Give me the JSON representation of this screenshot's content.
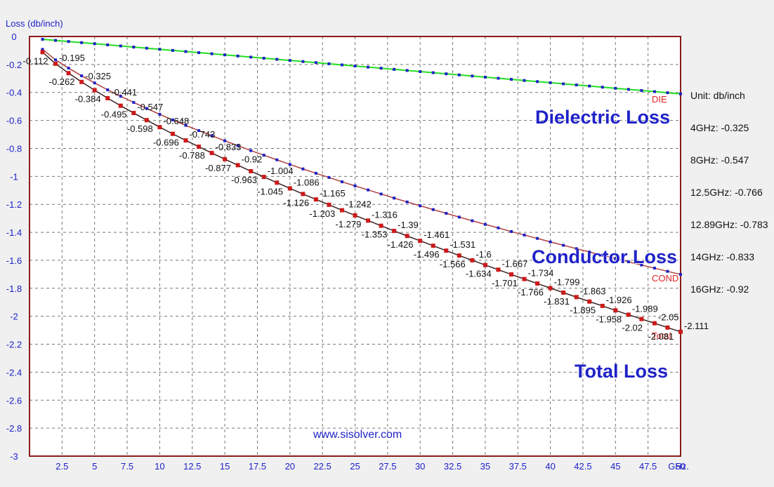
{
  "chart_data": {
    "type": "line",
    "ylabel": "Loss (db/inch)",
    "xunit": "GHz.",
    "xlim": [
      0,
      50
    ],
    "ylim": [
      -3,
      0
    ],
    "xticks": [
      2.5,
      5,
      7.5,
      10,
      12.5,
      15,
      17.5,
      20,
      22.5,
      25,
      27.5,
      30,
      32.5,
      35,
      37.5,
      40,
      42.5,
      45,
      47.5,
      50
    ],
    "yticks": [
      0,
      -0.2,
      -0.4,
      -0.6,
      -0.8,
      -1,
      -1.2,
      -1.4,
      -1.6,
      -1.8,
      -2,
      -2.2,
      -2.4,
      -2.6,
      -2.8,
      -3
    ],
    "grid": true,
    "series": [
      {
        "name": "DIE",
        "color": "#22dd22",
        "marker_color": "#1e22c8",
        "x": [
          1,
          50
        ],
        "y": [
          -0.02,
          -0.41
        ]
      },
      {
        "name": "COND",
        "color": "#b04040",
        "marker_color": "#1e22c8",
        "x": [
          1,
          2,
          3,
          4,
          5,
          6,
          7,
          8,
          9,
          10,
          11,
          12,
          13,
          14,
          15,
          16,
          17,
          18,
          19,
          20,
          21,
          22,
          23,
          24,
          25,
          26,
          27,
          28,
          29,
          30,
          31,
          32,
          33,
          34,
          35,
          36,
          37,
          38,
          39,
          40,
          41,
          42,
          43,
          44,
          45,
          46,
          47,
          48,
          49,
          50
        ],
        "y": [
          -0.112,
          -0.195,
          -0.262,
          -0.325,
          -0.384,
          -0.441,
          -0.495,
          -0.547,
          -0.598,
          -0.648,
          -0.696,
          -0.743,
          -0.788,
          -0.833,
          -0.877,
          -0.92,
          -0.963,
          -1.004,
          -1.045,
          -1.086,
          -1.126,
          -1.165,
          -1.203,
          -1.242,
          -1.279,
          -1.316,
          -1.353,
          -1.39,
          -1.426,
          -1.461,
          -1.496,
          -1.531,
          -1.566,
          -1.6,
          -1.634,
          -1.667,
          -1.701,
          -1.734,
          -1.766,
          -1.799,
          -1.831,
          -1.863,
          -1.895,
          -1.926,
          -1.958,
          -1.989,
          -2.02,
          -2.05,
          -2.081,
          -2.111
        ]
      },
      {
        "name": "Total",
        "color": "#3a2222",
        "marker_color": "#cc1a1a",
        "x": [
          1,
          2,
          3,
          4,
          5,
          6,
          7,
          8,
          9,
          10,
          11,
          12,
          13,
          14,
          15,
          16,
          17,
          18,
          19,
          20,
          21,
          22,
          23,
          24,
          25,
          26,
          27,
          28,
          29,
          30,
          31,
          32,
          33,
          34,
          35,
          36,
          37,
          38,
          39,
          40,
          41,
          42,
          43,
          44,
          45,
          46,
          47,
          48,
          49,
          50
        ],
        "y": [
          -0.112,
          -0.195,
          -0.262,
          -0.325,
          -0.384,
          -0.441,
          -0.495,
          -0.547,
          -0.598,
          -0.648,
          -0.696,
          -0.743,
          -0.788,
          -0.833,
          -0.877,
          -0.92,
          -0.963,
          -1.004,
          -1.045,
          -1.086,
          -1.126,
          -1.165,
          -1.203,
          -1.242,
          -1.279,
          -1.316,
          -1.353,
          -1.39,
          -1.426,
          -1.461,
          -1.496,
          -1.531,
          -1.566,
          -1.6,
          -1.634,
          -1.667,
          -1.701,
          -1.734,
          -1.766,
          -1.799,
          -1.831,
          -1.863,
          -1.895,
          -1.926,
          -1.958,
          -1.989,
          -2.02,
          -2.05,
          -2.081,
          -2.111
        ]
      }
    ],
    "annotations": {
      "die_label": "Dielectric Loss",
      "cond_label": "Conductor Loss",
      "total_label": "Total Loss"
    }
  },
  "side_info": {
    "unit": "Unit: db/inch",
    "items": [
      "4GHz: -0.325",
      "8GHz: -0.547",
      "12.5GHz: -0.766",
      "12.89GHz: -0.783",
      "14GHz: -0.833",
      "16GHz: -0.92"
    ]
  },
  "watermark": "www.sisolver.com"
}
